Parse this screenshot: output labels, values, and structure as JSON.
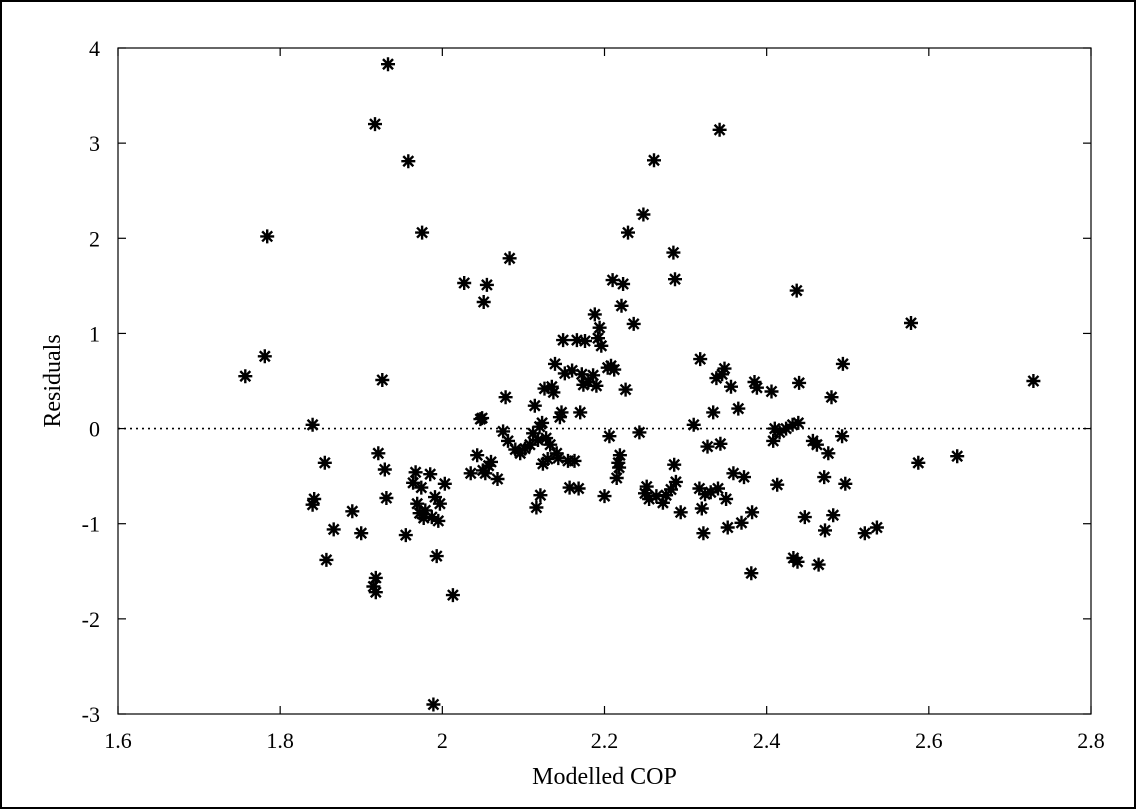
{
  "chart_data": {
    "type": "scatter",
    "title": "",
    "xlabel": "Modelled COP",
    "ylabel": "Residuals",
    "xlim": [
      1.6,
      2.8
    ],
    "ylim": [
      -3,
      4
    ],
    "xticks": [
      1.6,
      1.8,
      2.0,
      2.2,
      2.4,
      2.6,
      2.8
    ],
    "xtick_labels": [
      "1.6",
      "1.8",
      "2",
      "2.2",
      "2.4",
      "2.6",
      "2.8"
    ],
    "yticks": [
      -3,
      -2,
      -1,
      0,
      1,
      2,
      3,
      4
    ],
    "ytick_labels": [
      "-3",
      "-2",
      "-1",
      "0",
      "1",
      "2",
      "3",
      "4"
    ],
    "grid": false,
    "reference_line": {
      "y": 0,
      "style": "dotted"
    },
    "marker": "asterisk",
    "series": [
      {
        "points": [
          [
            1.757,
            0.55
          ],
          [
            1.781,
            0.76
          ],
          [
            1.784,
            2.02
          ],
          [
            1.84,
            0.04
          ],
          [
            1.84,
            -0.8
          ],
          [
            1.842,
            -0.74
          ],
          [
            1.855,
            -0.36
          ],
          [
            1.857,
            -1.38
          ],
          [
            1.866,
            -1.06
          ],
          [
            1.889,
            -0.87
          ],
          [
            1.9,
            -1.1
          ],
          [
            1.915,
            -1.66
          ],
          [
            1.918,
            -1.57
          ],
          [
            1.918,
            -1.72
          ],
          [
            1.917,
            3.2
          ],
          [
            1.921,
            -0.26
          ],
          [
            1.926,
            0.51
          ],
          [
            1.929,
            -0.43
          ],
          [
            1.931,
            -0.73
          ],
          [
            1.933,
            3.83
          ],
          [
            1.955,
            -1.12
          ],
          [
            1.958,
            2.81
          ],
          [
            1.964,
            -0.57
          ],
          [
            1.967,
            -0.46
          ],
          [
            1.969,
            -0.79
          ],
          [
            1.972,
            -0.89
          ],
          [
            1.974,
            -0.62
          ],
          [
            1.975,
            2.06
          ],
          [
            1.977,
            -0.94
          ],
          [
            1.979,
            -0.86
          ],
          [
            1.985,
            -0.48
          ],
          [
            1.987,
            -0.93
          ],
          [
            1.989,
            -2.9
          ],
          [
            1.991,
            -0.72
          ],
          [
            1.993,
            -1.34
          ],
          [
            1.995,
            -0.97
          ],
          [
            1.997,
            -0.79
          ],
          [
            2.003,
            -0.58
          ],
          [
            2.013,
            -1.75
          ],
          [
            2.027,
            1.53
          ],
          [
            2.035,
            -0.47
          ],
          [
            2.043,
            -0.28
          ],
          [
            2.047,
            0.1
          ],
          [
            2.049,
            0.11
          ],
          [
            2.05,
            -0.44
          ],
          [
            2.051,
            1.33
          ],
          [
            2.053,
            -0.47
          ],
          [
            2.055,
            1.51
          ],
          [
            2.057,
            -0.39
          ],
          [
            2.06,
            -0.35
          ],
          [
            2.068,
            -0.53
          ],
          [
            2.075,
            -0.03
          ],
          [
            2.078,
            0.33
          ],
          [
            2.081,
            -0.13
          ],
          [
            2.083,
            1.79
          ],
          [
            2.09,
            -0.22
          ],
          [
            2.096,
            -0.26
          ],
          [
            2.102,
            -0.21
          ],
          [
            2.108,
            -0.17
          ],
          [
            2.112,
            -0.05
          ],
          [
            2.114,
            0.24
          ],
          [
            2.116,
            -0.83
          ],
          [
            2.118,
            -0.12
          ],
          [
            2.12,
            0.02
          ],
          [
            2.121,
            -0.7
          ],
          [
            2.123,
            0.06
          ],
          [
            2.124,
            -0.37
          ],
          [
            2.126,
            0.42
          ],
          [
            2.128,
            -0.1
          ],
          [
            2.13,
            -0.32
          ],
          [
            2.133,
            -0.17
          ],
          [
            2.135,
            0.44
          ],
          [
            2.137,
            0.38
          ],
          [
            2.139,
            0.68
          ],
          [
            2.141,
            -0.26
          ],
          [
            2.143,
            -0.31
          ],
          [
            2.145,
            0.12
          ],
          [
            2.147,
            0.17
          ],
          [
            2.149,
            0.93
          ],
          [
            2.151,
            0.58
          ],
          [
            2.155,
            -0.34
          ],
          [
            2.157,
            -0.62
          ],
          [
            2.16,
            0.61
          ],
          [
            2.163,
            -0.34
          ],
          [
            2.166,
            0.93
          ],
          [
            2.168,
            -0.63
          ],
          [
            2.17,
            0.17
          ],
          [
            2.172,
            0.57
          ],
          [
            2.174,
            0.46
          ],
          [
            2.176,
            0.92
          ],
          [
            2.18,
            0.49
          ],
          [
            2.186,
            0.56
          ],
          [
            2.188,
            1.2
          ],
          [
            2.19,
            0.45
          ],
          [
            2.192,
            0.95
          ],
          [
            2.194,
            1.06
          ],
          [
            2.196,
            0.87
          ],
          [
            2.2,
            -0.71
          ],
          [
            2.204,
            0.64
          ],
          [
            2.206,
            -0.08
          ],
          [
            2.208,
            0.66
          ],
          [
            2.21,
            1.56
          ],
          [
            2.212,
            0.62
          ],
          [
            2.215,
            -0.52
          ],
          [
            2.217,
            -0.36
          ],
          [
            2.218,
            -0.41
          ],
          [
            2.219,
            -0.28
          ],
          [
            2.221,
            1.29
          ],
          [
            2.223,
            1.52
          ],
          [
            2.226,
            0.41
          ],
          [
            2.229,
            2.06
          ],
          [
            2.236,
            1.1
          ],
          [
            2.243,
            -0.04
          ],
          [
            2.248,
            2.25
          ],
          [
            2.25,
            -0.68
          ],
          [
            2.252,
            -0.61
          ],
          [
            2.255,
            -0.74
          ],
          [
            2.261,
            2.82
          ],
          [
            2.264,
            -0.71
          ],
          [
            2.272,
            -0.78
          ],
          [
            2.276,
            -0.7
          ],
          [
            2.282,
            -0.64
          ],
          [
            2.285,
            1.85
          ],
          [
            2.286,
            -0.38
          ],
          [
            2.287,
            1.57
          ],
          [
            2.288,
            -0.56
          ],
          [
            2.294,
            -0.88
          ],
          [
            2.31,
            0.04
          ],
          [
            2.317,
            -0.63
          ],
          [
            2.318,
            0.73
          ],
          [
            2.32,
            -0.84
          ],
          [
            2.322,
            -1.1
          ],
          [
            2.324,
            -0.69
          ],
          [
            2.327,
            -0.19
          ],
          [
            2.331,
            -0.67
          ],
          [
            2.334,
            0.17
          ],
          [
            2.338,
            0.53
          ],
          [
            2.34,
            -0.63
          ],
          [
            2.342,
            3.14
          ],
          [
            2.343,
            -0.16
          ],
          [
            2.345,
            0.57
          ],
          [
            2.348,
            0.63
          ],
          [
            2.35,
            -0.74
          ],
          [
            2.352,
            -1.04
          ],
          [
            2.356,
            0.44
          ],
          [
            2.359,
            -0.47
          ],
          [
            2.365,
            0.21
          ],
          [
            2.369,
            -0.99
          ],
          [
            2.372,
            -0.51
          ],
          [
            2.381,
            -1.52
          ],
          [
            2.382,
            -0.88
          ],
          [
            2.385,
            0.49
          ],
          [
            2.388,
            0.43
          ],
          [
            2.406,
            0.39
          ],
          [
            2.408,
            -0.13
          ],
          [
            2.41,
            0.0
          ],
          [
            2.413,
            -0.59
          ],
          [
            2.416,
            -0.04
          ],
          [
            2.424,
            0.0
          ],
          [
            2.432,
            0.04
          ],
          [
            2.433,
            -1.36
          ],
          [
            2.437,
            1.45
          ],
          [
            2.438,
            -1.4
          ],
          [
            2.439,
            0.06
          ],
          [
            2.44,
            0.48
          ],
          [
            2.447,
            -0.93
          ],
          [
            2.457,
            -0.13
          ],
          [
            2.462,
            -0.17
          ],
          [
            2.464,
            -1.43
          ],
          [
            2.471,
            -0.51
          ],
          [
            2.472,
            -1.07
          ],
          [
            2.476,
            -0.26
          ],
          [
            2.48,
            0.33
          ],
          [
            2.482,
            -0.91
          ],
          [
            2.493,
            -0.08
          ],
          [
            2.494,
            0.68
          ],
          [
            2.497,
            -0.58
          ],
          [
            2.521,
            -1.1
          ],
          [
            2.536,
            -1.04
          ],
          [
            2.578,
            1.11
          ],
          [
            2.587,
            -0.36
          ],
          [
            2.635,
            -0.29
          ],
          [
            2.729,
            0.5
          ]
        ]
      }
    ]
  }
}
